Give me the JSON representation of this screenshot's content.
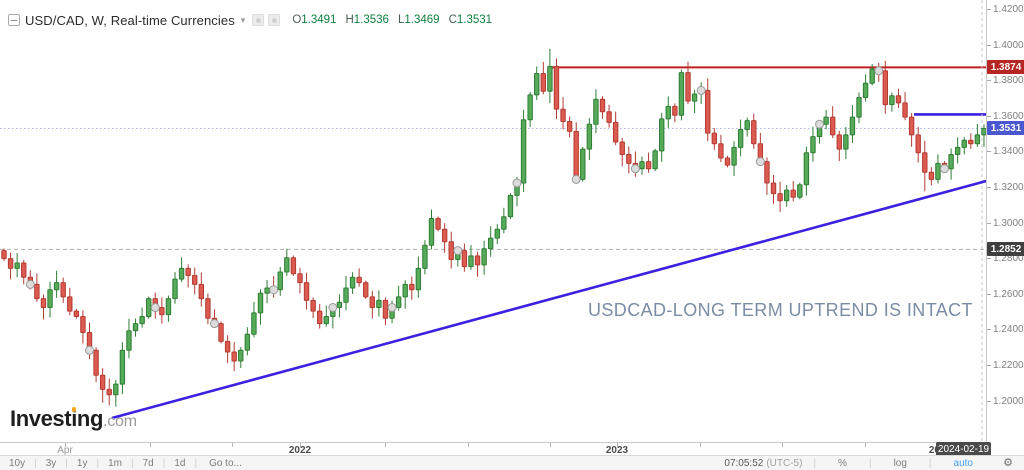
{
  "header": {
    "symbol_title": "USD/CAD, W, Real-time Currencies",
    "caret": "▾",
    "ohlc": {
      "o_label": "O",
      "o": "1.3491",
      "h_label": "H",
      "h": "1.3536",
      "l_label": "L",
      "l": "1.3469",
      "c_label": "C",
      "c": "1.3531"
    }
  },
  "annotation": {
    "text": "USDCAD-LONG TERM UPTREND IS INTACT"
  },
  "watermark": {
    "brand_part1": "Invest",
    "brand_part2": "i",
    "brand_part3": "ng",
    "suffix": ".com"
  },
  "price_axis": {
    "ticks": [
      1.42,
      1.4,
      1.38,
      1.36,
      1.34,
      1.32,
      1.3,
      1.28,
      1.26,
      1.24,
      1.22,
      1.2
    ],
    "badges": [
      {
        "value": "1.3874",
        "price": 1.3874,
        "bg": "#b62622"
      },
      {
        "value": "1.3531",
        "price": 1.3531,
        "bg": "#4a57d0"
      },
      {
        "value": "1.2852",
        "price": 1.2852,
        "bg": "#3f3f3f"
      }
    ]
  },
  "time_axis": {
    "labels": [
      {
        "text": "Apr",
        "x": 65,
        "bold": false
      },
      {
        "text": "2022",
        "x": 300,
        "bold": true
      },
      {
        "text": "2023",
        "x": 617,
        "bold": true
      },
      {
        "text": "2024",
        "x": 940,
        "bold": true
      }
    ],
    "minor_ticks_x": [
      65,
      150,
      232,
      300,
      385,
      468,
      550,
      617,
      700,
      782,
      865,
      940
    ],
    "tooltip": {
      "text": "2024-02-19",
      "left": 936,
      "width": 55
    }
  },
  "toolbar": {
    "ranges": [
      "10y",
      "3y",
      "1y",
      "1m",
      "7d",
      "1d"
    ],
    "goto": "Go to...",
    "clock": "07:05:52",
    "tz": "(UTC-5)",
    "percent": "%",
    "log": "log",
    "auto": "auto",
    "gear": "⚙"
  },
  "chart_data": {
    "type": "candlestick",
    "title": "USD/CAD Weekly",
    "interval": "W",
    "ylim": [
      1.19,
      1.425
    ],
    "grid": false,
    "first_open": 1.2845,
    "closes": [
      1.28,
      1.2745,
      1.2775,
      1.2695,
      1.2655,
      1.2575,
      1.2525,
      1.2625,
      1.2665,
      1.2585,
      1.2505,
      1.2475,
      1.2385,
      1.2285,
      1.2145,
      1.2065,
      1.2035,
      1.2095,
      1.2285,
      1.2395,
      1.2435,
      1.2475,
      1.2575,
      1.2525,
      1.2485,
      1.2575,
      1.2685,
      1.2745,
      1.2705,
      1.2655,
      1.2575,
      1.2465,
      1.2435,
      1.2335,
      1.2275,
      1.2225,
      1.2285,
      1.2375,
      1.2495,
      1.2605,
      1.2635,
      1.2625,
      1.2725,
      1.2805,
      1.2715,
      1.2665,
      1.2565,
      1.2505,
      1.2435,
      1.2475,
      1.2525,
      1.2555,
      1.2635,
      1.2695,
      1.2665,
      1.2585,
      1.2525,
      1.2565,
      1.2465,
      1.2525,
      1.2585,
      1.2655,
      1.2625,
      1.2745,
      1.2875,
      1.3025,
      1.2965,
      1.2895,
      1.2795,
      1.2845,
      1.2755,
      1.2815,
      1.2765,
      1.2855,
      1.2915,
      1.2965,
      1.3035,
      1.3155,
      1.3225,
      1.358,
      1.372,
      1.384,
      1.374,
      1.388,
      1.364,
      1.357,
      1.3515,
      1.3245,
      1.3415,
      1.3555,
      1.3695,
      1.3625,
      1.3565,
      1.3455,
      1.3385,
      1.3335,
      1.3305,
      1.3345,
      1.3305,
      1.3405,
      1.3585,
      1.3655,
      1.3605,
      1.3845,
      1.3685,
      1.3725,
      1.3745,
      1.3505,
      1.3445,
      1.3365,
      1.3325,
      1.3425,
      1.3525,
      1.3575,
      1.3445,
      1.3345,
      1.3225,
      1.3165,
      1.3125,
      1.3185,
      1.3145,
      1.3215,
      1.3395,
      1.3485,
      1.3555,
      1.3595,
      1.3495,
      1.3415,
      1.3495,
      1.3595,
      1.3705,
      1.3785,
      1.3865,
      1.3855,
      1.3665,
      1.3715,
      1.3675,
      1.3595,
      1.3495,
      1.3395,
      1.3285,
      1.3245,
      1.3335,
      1.3305,
      1.3385,
      1.3425,
      1.3465,
      1.3445,
      1.3495,
      1.3531
    ],
    "high_overrides": {
      "82": 1.3905,
      "83": 1.3978,
      "103": 1.3862,
      "132": 1.3893,
      "133": 1.3899
    },
    "low_overrides": {
      "15": 1.199,
      "16": 1.1975,
      "35": 1.2168,
      "118": 1.3062,
      "140": 1.3178
    },
    "dot_indices": [
      4,
      13,
      23,
      32,
      41,
      50,
      59,
      69,
      78,
      87,
      96,
      106,
      115,
      124,
      133,
      143
    ],
    "key_levels": [
      {
        "price": 1.3874,
        "type": "resistance",
        "color": "#c01f1f",
        "x1": 548,
        "x2": 989
      },
      {
        "price": 1.361,
        "type": "minor-resistance",
        "color": "#3c21e0",
        "x1": 914,
        "x2": 988
      },
      {
        "price": 1.3531,
        "type": "last-price-dotted",
        "color": "#a8b6e8",
        "x1": 0,
        "x2": 985
      },
      {
        "price": 1.2852,
        "type": "dashed-level",
        "color": "#b0b0b0",
        "x1": 0,
        "x2": 985
      }
    ],
    "trendline": {
      "x1": 112,
      "y1": 418,
      "x2": 990,
      "y2": 180,
      "color": "#3c21e0",
      "label": "long-term uptrend"
    },
    "current_week_vline_x": 982,
    "layout": {
      "x0": 4,
      "dx": 6.577,
      "y0": 45,
      "pmax": 1.4,
      "k": 1780,
      "plot_right": 986,
      "plot_bottom": 442
    },
    "colors": {
      "up_fill": "#56aa5a",
      "up_stroke": "#2e7d33",
      "down_fill": "#dc5a50",
      "down_stroke": "#b23b32",
      "dot_fill": "#dcdcdc",
      "dot_stroke": "#9a9a9a",
      "vline": "#c4c4c4"
    }
  }
}
